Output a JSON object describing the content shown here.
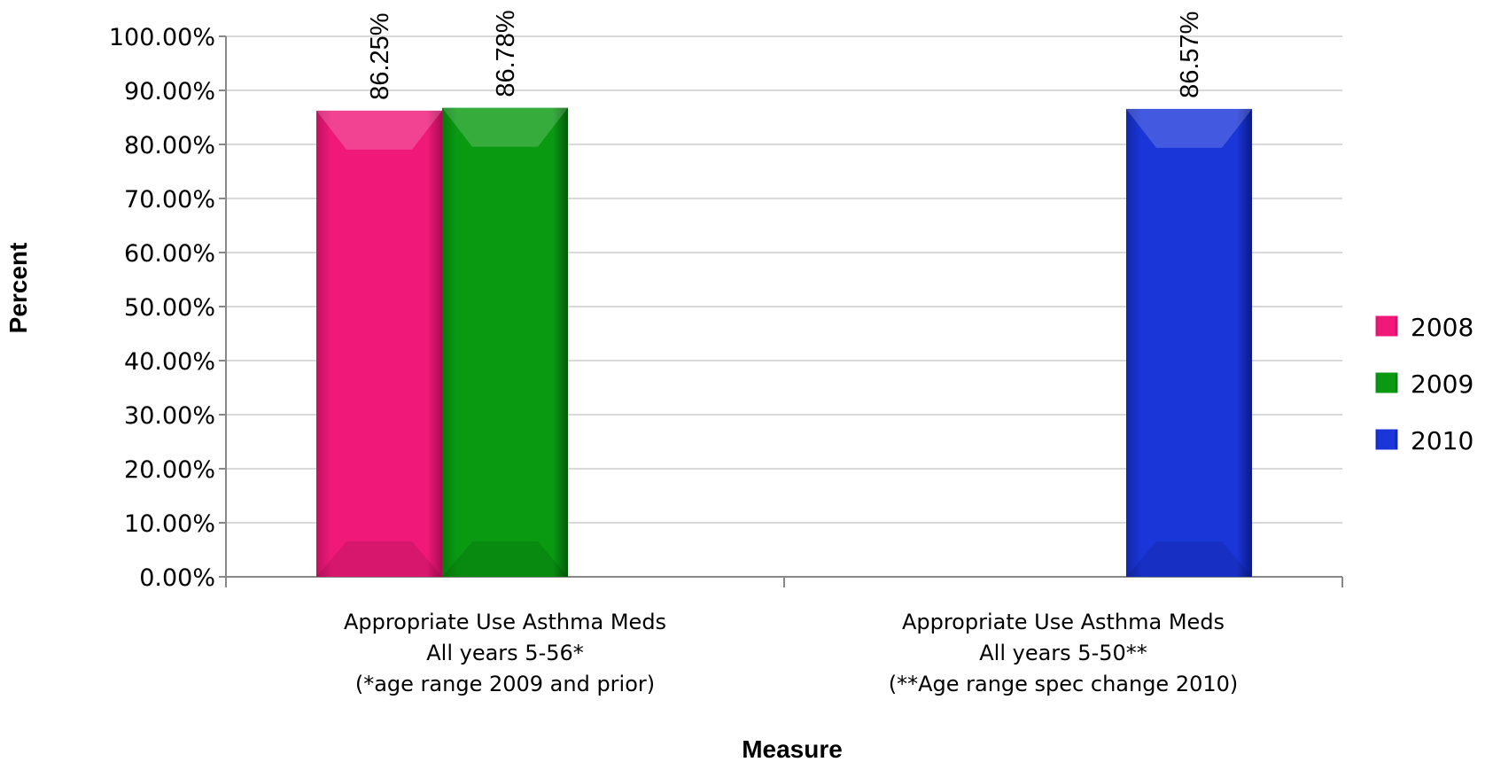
{
  "chart_data": {
    "type": "bar",
    "xlabel": "Measure",
    "ylabel": "Percent",
    "ylim": [
      0,
      100
    ],
    "yticks": [
      "0.00%",
      "10.00%",
      "20.00%",
      "30.00%",
      "40.00%",
      "50.00%",
      "60.00%",
      "70.00%",
      "80.00%",
      "90.00%",
      "100.00%"
    ],
    "grid": true,
    "legend": "right",
    "categories": [
      [
        "Appropriate Use Asthma Meds",
        "All years 5-56*",
        "(*age range 2009 and prior)"
      ],
      [
        "Appropriate Use Asthma Meds",
        "All years 5-50**",
        "(**Age range spec change 2010)"
      ]
    ],
    "series": [
      {
        "name": "2008",
        "color": "#f0197a",
        "values": [
          86.25,
          null
        ],
        "labels": [
          "86.25%",
          ""
        ]
      },
      {
        "name": "2009",
        "color": "#0a9a12",
        "values": [
          86.78,
          null
        ],
        "labels": [
          "86.78%",
          ""
        ]
      },
      {
        "name": "2010",
        "color": "#1a35d8",
        "values": [
          null,
          86.57
        ],
        "labels": [
          "",
          "86.57%"
        ]
      }
    ]
  }
}
